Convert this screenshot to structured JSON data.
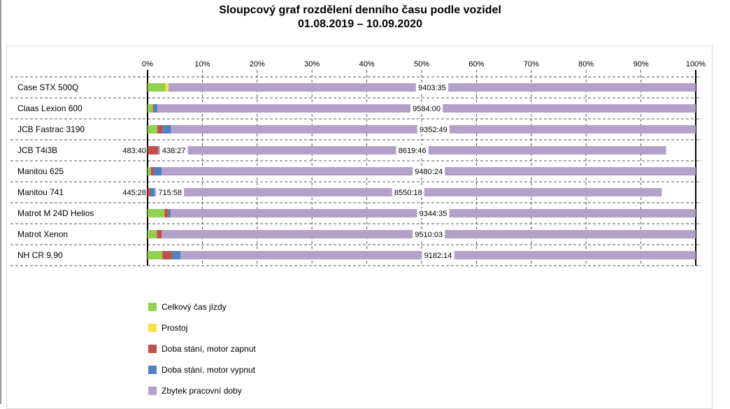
{
  "title_line1": "Sloupcový graf rozdělení denního času podle vozidel",
  "title_line2": "01.08.2019 – 10.09.2020",
  "chart_data": {
    "type": "bar",
    "orientation": "horizontal",
    "stacked": true,
    "normalized_percent": true,
    "xlim": [
      0,
      100
    ],
    "x_ticks": [
      "0%",
      "10%",
      "20%",
      "30%",
      "40%",
      "50%",
      "60%",
      "70%",
      "80%",
      "90%",
      "100%"
    ],
    "grid": true,
    "legend_position": "bottom-left",
    "categories": [
      "Case STX 500Q",
      "Claas Lexion 600",
      "JCB Fastrac 3190",
      "JCB T4i3B",
      "Manitou 625",
      "Manitou 741",
      "Matrot M 24D Helios",
      "Matrot Xenon",
      "NH CR 9.90"
    ],
    "series": [
      {
        "name": "Celkový čas jízdy",
        "color": "#92d050",
        "values": [
          3.3,
          1.0,
          1.8,
          0,
          0.6,
          0,
          3.1,
          1.7,
          2.7
        ]
      },
      {
        "name": "Prostoj",
        "color": "#ffe040",
        "values": [
          0.5,
          0,
          0,
          0,
          0,
          0,
          0,
          0,
          0
        ]
      },
      {
        "name": "Doba stání, motor zapnut",
        "color": "#c0504d",
        "values": [
          0,
          0.2,
          0.9,
          2.0,
          0.5,
          0.5,
          0.7,
          0.9,
          1.7
        ]
      },
      {
        "name": "Doba stání, motor vypnut",
        "color": "#4f81bd",
        "values": [
          0,
          0.6,
          1.6,
          0,
          1.5,
          0.8,
          0.4,
          0,
          1.6
        ]
      },
      {
        "name": "Zbytek pracovní doby",
        "color": "#b3a2c7",
        "values": [
          96.2,
          98.2,
          95.7,
          92.6,
          97.4,
          92.5,
          95.8,
          97.4,
          94.0
        ]
      }
    ],
    "data_labels": [
      [
        {
          "series": 4,
          "text": "9403:35"
        }
      ],
      [
        {
          "series": 4,
          "text": "9584:00"
        }
      ],
      [
        {
          "series": 4,
          "text": "9352:49"
        }
      ],
      [
        {
          "series": 2,
          "text": "483:40"
        },
        {
          "series": 2,
          "text": "438:27"
        },
        {
          "series": 4,
          "text": "8619:46"
        }
      ],
      [
        {
          "series": 4,
          "text": "9480:24"
        }
      ],
      [
        {
          "series": 2,
          "text": "445:28"
        },
        {
          "series": 3,
          "text": "715:58"
        },
        {
          "series": 4,
          "text": "8550:18"
        }
      ],
      [
        {
          "series": 4,
          "text": "9344:35"
        }
      ],
      [
        {
          "series": 4,
          "text": "9510:03"
        }
      ],
      [
        {
          "series": 4,
          "text": "9182:14"
        }
      ]
    ]
  }
}
